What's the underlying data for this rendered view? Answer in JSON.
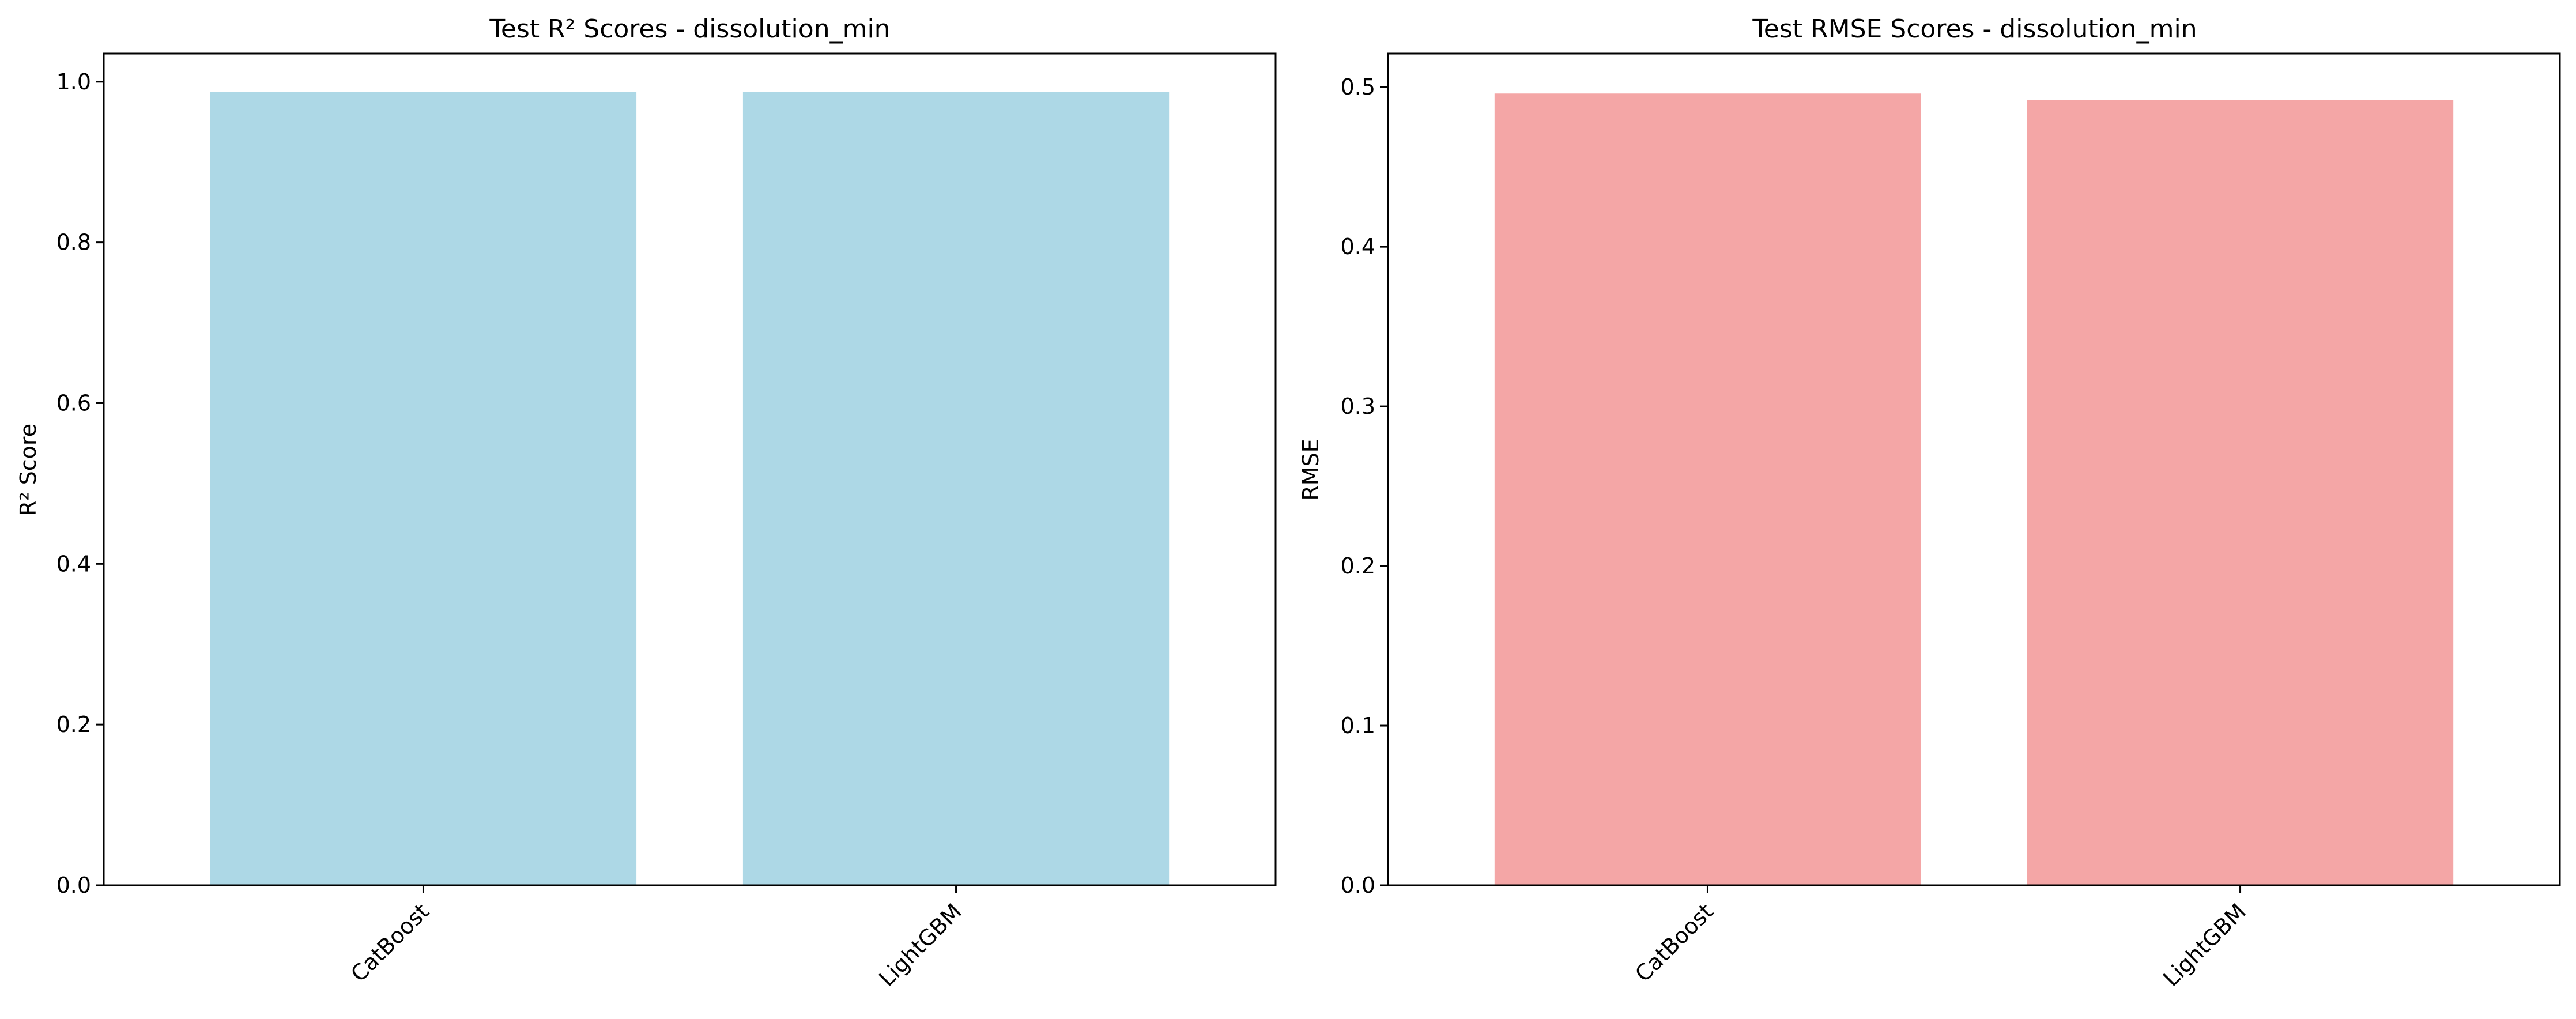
{
  "chart_data": [
    {
      "type": "bar",
      "title": "Test R² Scores - dissolution_min",
      "xlabel": "",
      "ylabel": "R² Score",
      "categories": [
        "CatBoost",
        "LightGBM"
      ],
      "values": [
        0.987,
        0.987
      ],
      "ylim": [
        0,
        1.035
      ],
      "yticks": [
        0.0,
        0.2,
        0.4,
        0.6,
        0.8,
        1.0
      ],
      "ytick_labels": [
        "0.0",
        "0.2",
        "0.4",
        "0.6",
        "0.8",
        "1.0"
      ],
      "bar_color": "#add8e6",
      "grid": false
    },
    {
      "type": "bar",
      "title": "Test RMSE Scores - dissolution_min",
      "xlabel": "",
      "ylabel": "RMSE",
      "categories": [
        "CatBoost",
        "LightGBM"
      ],
      "values": [
        0.496,
        0.492
      ],
      "ylim": [
        0,
        0.521
      ],
      "yticks": [
        0.0,
        0.1,
        0.2,
        0.3,
        0.4,
        0.5
      ],
      "ytick_labels": [
        "0.0",
        "0.1",
        "0.2",
        "0.3",
        "0.4",
        "0.5"
      ],
      "bar_color": "#f08080",
      "bar_opacity": 0.7,
      "grid": false
    }
  ]
}
